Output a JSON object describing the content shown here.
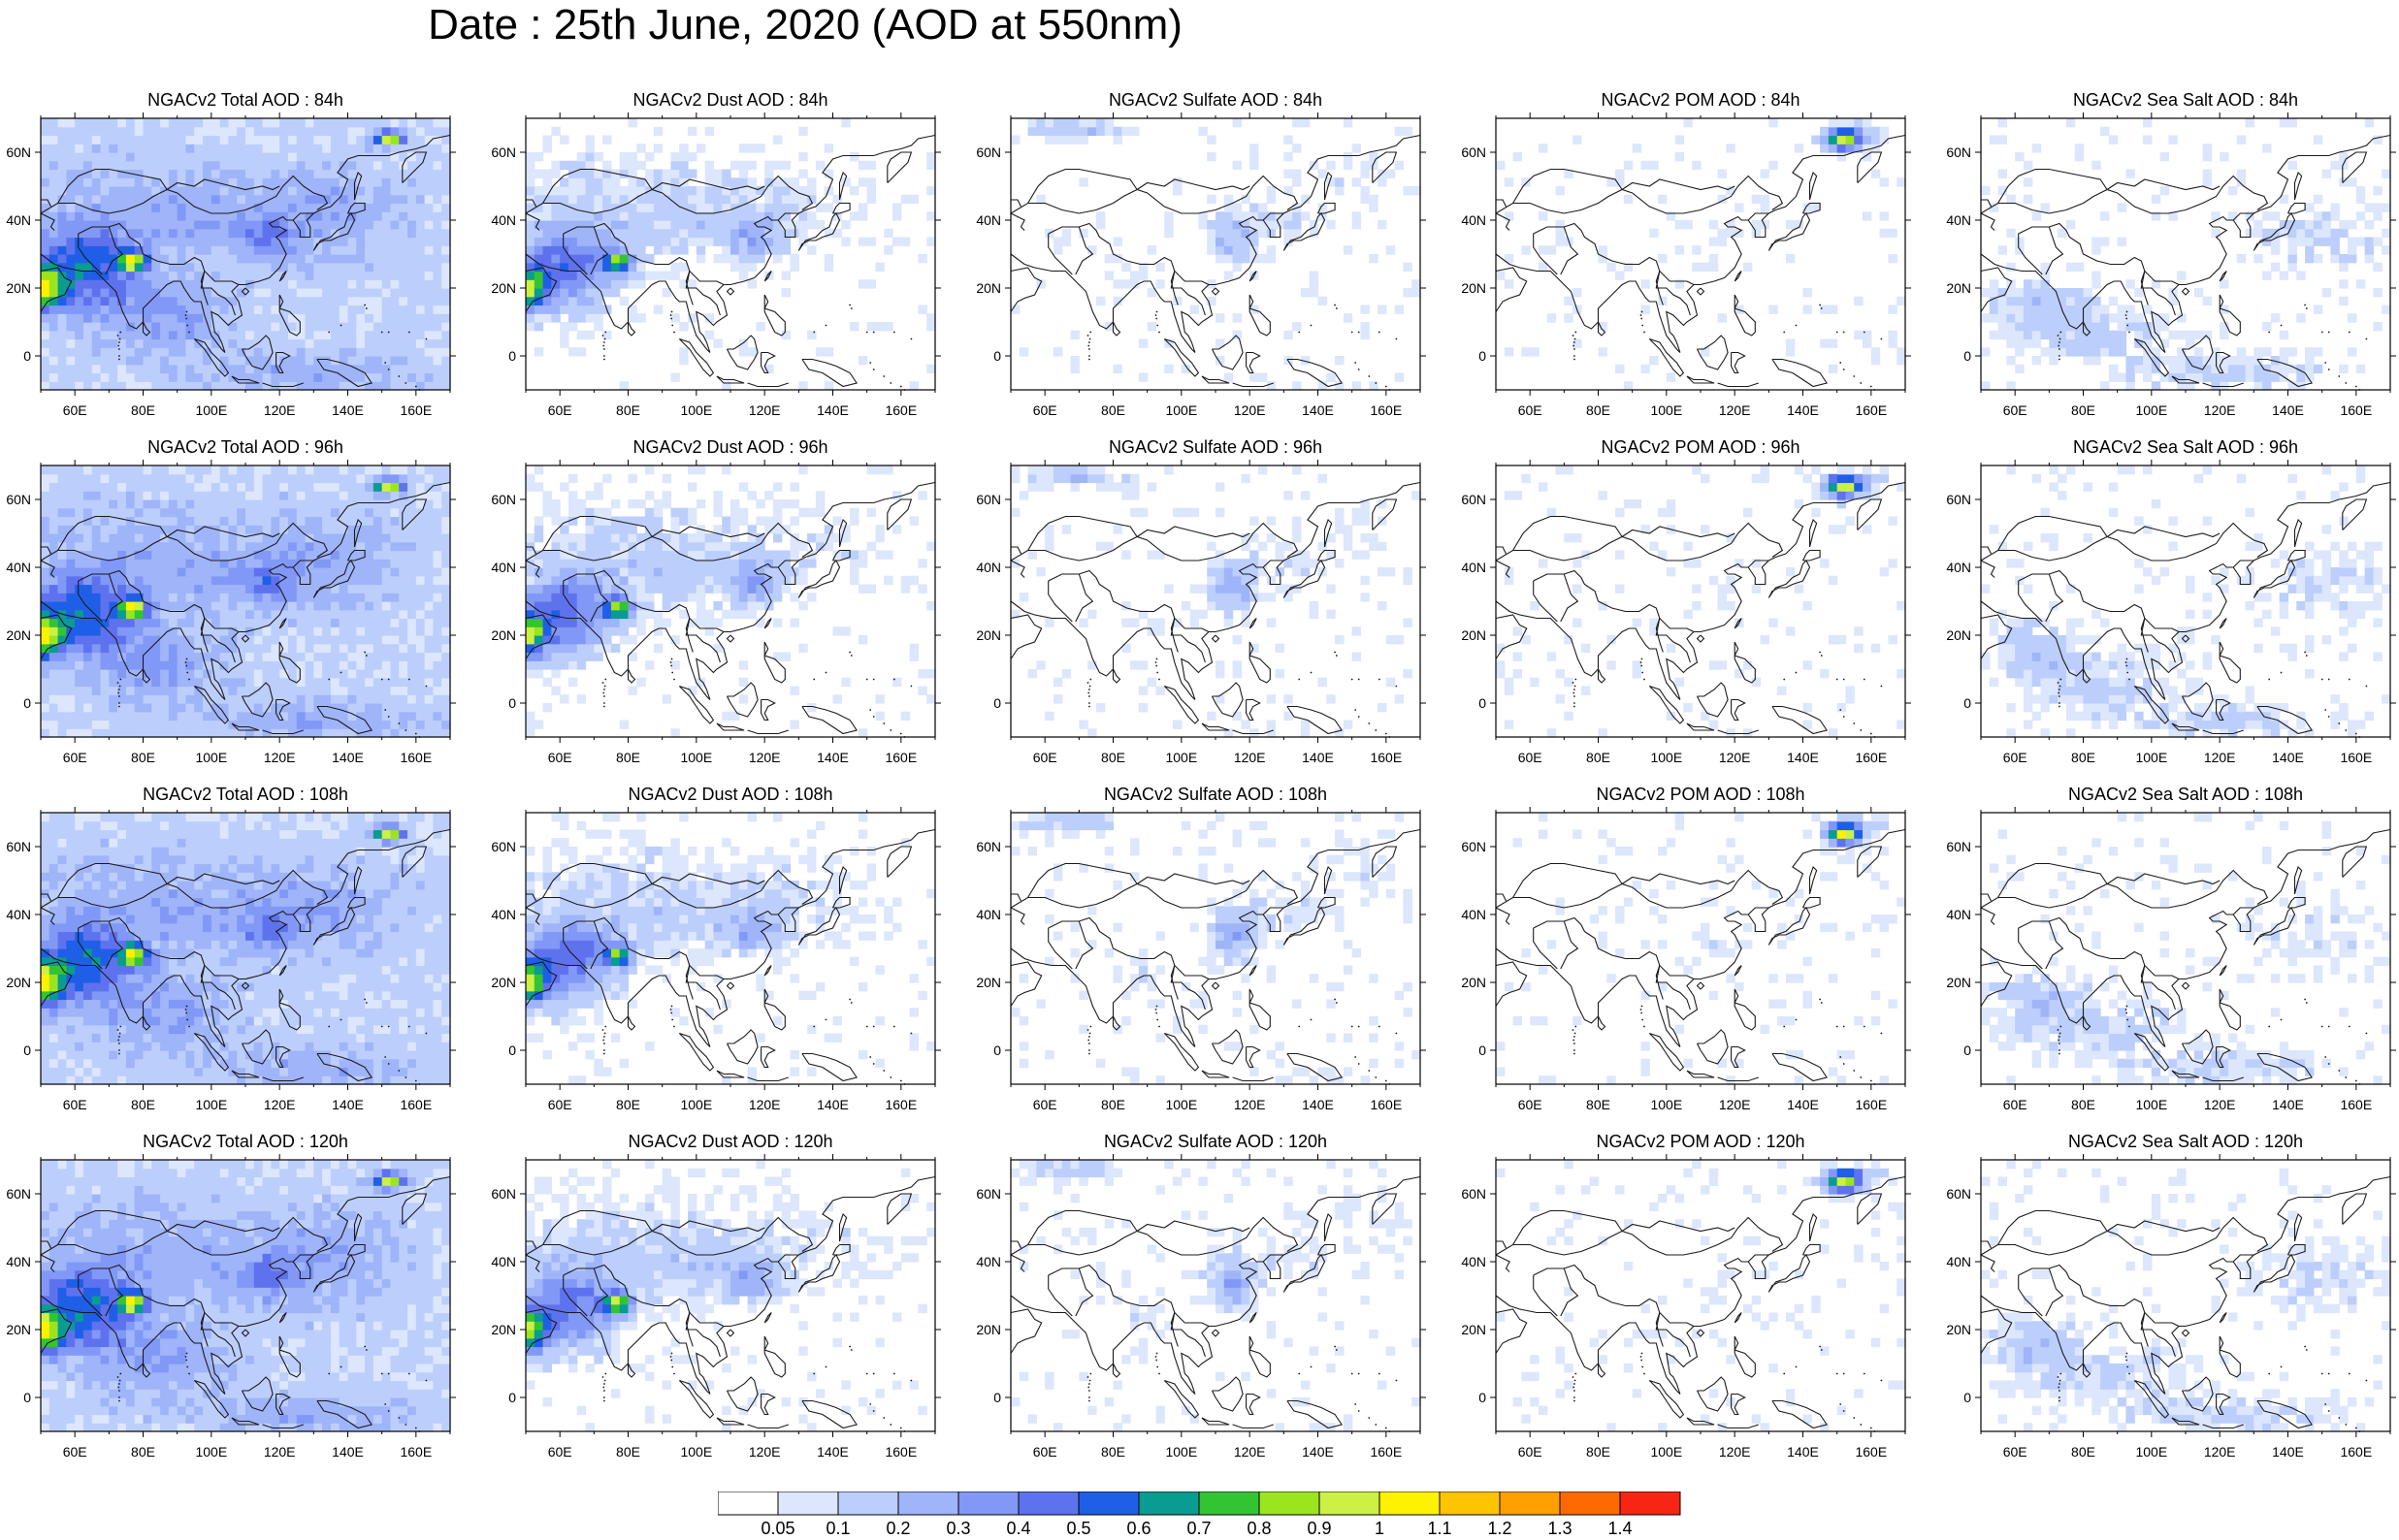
{
  "title": "Date : 25th June, 2020 (AOD at 550nm)",
  "lat_ticks": [
    "60N",
    "40N",
    "20N",
    "0"
  ],
  "lon_ticks": [
    "60E",
    "80E",
    "100E",
    "120E",
    "140E",
    "160E"
  ],
  "panels": [
    {
      "title": "NGACv2 Total AOD : 84h",
      "species": "total",
      "forecast_hour": 84
    },
    {
      "title": "NGACv2 Dust AOD : 84h",
      "species": "dust",
      "forecast_hour": 84
    },
    {
      "title": "NGACv2 Sulfate AOD : 84h",
      "species": "sulfate",
      "forecast_hour": 84
    },
    {
      "title": "NGACv2 POM AOD : 84h",
      "species": "pom",
      "forecast_hour": 84
    },
    {
      "title": "NGACv2 Sea Salt AOD : 84h",
      "species": "seasalt",
      "forecast_hour": 84
    },
    {
      "title": "NGACv2 Total AOD : 96h",
      "species": "total",
      "forecast_hour": 96
    },
    {
      "title": "NGACv2 Dust AOD : 96h",
      "species": "dust",
      "forecast_hour": 96
    },
    {
      "title": "NGACv2 Sulfate AOD : 96h",
      "species": "sulfate",
      "forecast_hour": 96
    },
    {
      "title": "NGACv2 POM AOD : 96h",
      "species": "pom",
      "forecast_hour": 96
    },
    {
      "title": "NGACv2 Sea Salt AOD : 96h",
      "species": "seasalt",
      "forecast_hour": 96
    },
    {
      "title": "NGACv2 Total AOD : 108h",
      "species": "total",
      "forecast_hour": 108
    },
    {
      "title": "NGACv2 Dust AOD : 108h",
      "species": "dust",
      "forecast_hour": 108
    },
    {
      "title": "NGACv2 Sulfate AOD : 108h",
      "species": "sulfate",
      "forecast_hour": 108
    },
    {
      "title": "NGACv2 POM AOD : 108h",
      "species": "pom",
      "forecast_hour": 108
    },
    {
      "title": "NGACv2 Sea Salt AOD : 108h",
      "species": "seasalt",
      "forecast_hour": 108
    },
    {
      "title": "NGACv2 Total AOD : 120h",
      "species": "total",
      "forecast_hour": 120
    },
    {
      "title": "NGACv2 Dust AOD : 120h",
      "species": "dust",
      "forecast_hour": 120
    },
    {
      "title": "NGACv2 Sulfate AOD : 120h",
      "species": "sulfate",
      "forecast_hour": 120
    },
    {
      "title": "NGACv2 POM AOD : 120h",
      "species": "pom",
      "forecast_hour": 120
    },
    {
      "title": "NGACv2 Sea Salt  AOD : 120h",
      "species": "seasalt",
      "forecast_hour": 120
    }
  ],
  "colorbar": {
    "levels": [
      "0.05",
      "0.1",
      "0.2",
      "0.3",
      "0.4",
      "0.5",
      "0.6",
      "0.7",
      "0.8",
      "0.9",
      "1",
      "1.1",
      "1.2",
      "1.3",
      "1.4"
    ],
    "colors": [
      "#ffffff",
      "#dce6fc",
      "#bccefb",
      "#9fb4f9",
      "#8198f6",
      "#5f72ee",
      "#1f5fe8",
      "#0a9b91",
      "#33c433",
      "#9be51f",
      "#ccf044",
      "#fff200",
      "#ffc400",
      "#ff9f00",
      "#ff6a00",
      "#f72514"
    ]
  }
}
